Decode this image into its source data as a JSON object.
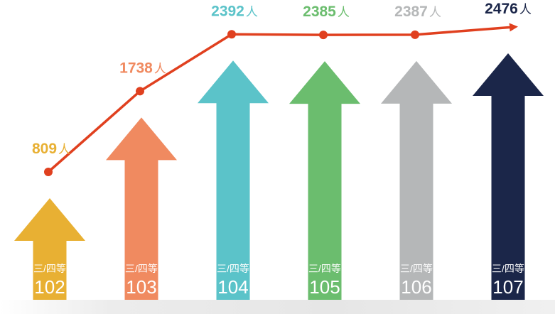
{
  "chart_data": {
    "type": "line",
    "title": "",
    "xlabel": "",
    "ylabel": "",
    "categories": [
      {
        "prefix": "三/四等",
        "year": "102",
        "color": "#E8B033"
      },
      {
        "prefix": "三/四等",
        "year": "103",
        "color": "#F08A60"
      },
      {
        "prefix": "三/四等",
        "year": "104",
        "color": "#5BC3C9"
      },
      {
        "prefix": "三/四等",
        "year": "105",
        "color": "#6BBD6E"
      },
      {
        "prefix": "三/四等",
        "year": "106",
        "color": "#B5B7B8"
      },
      {
        "prefix": "三/四等",
        "year": "107",
        "color": "#1B2649"
      }
    ],
    "series": [
      {
        "values": [
          809,
          1738,
          2392,
          2385,
          2387,
          2476
        ],
        "labels": [
          "809",
          "1738",
          "2392",
          "2385",
          "2387",
          "2476"
        ],
        "unit": "人",
        "color": "#E0401F"
      }
    ],
    "label_colors": [
      "#E8B033",
      "#F08A60",
      "#5BC3C9",
      "#6BBD6E",
      "#B5B7B8",
      "#1B2649"
    ]
  }
}
